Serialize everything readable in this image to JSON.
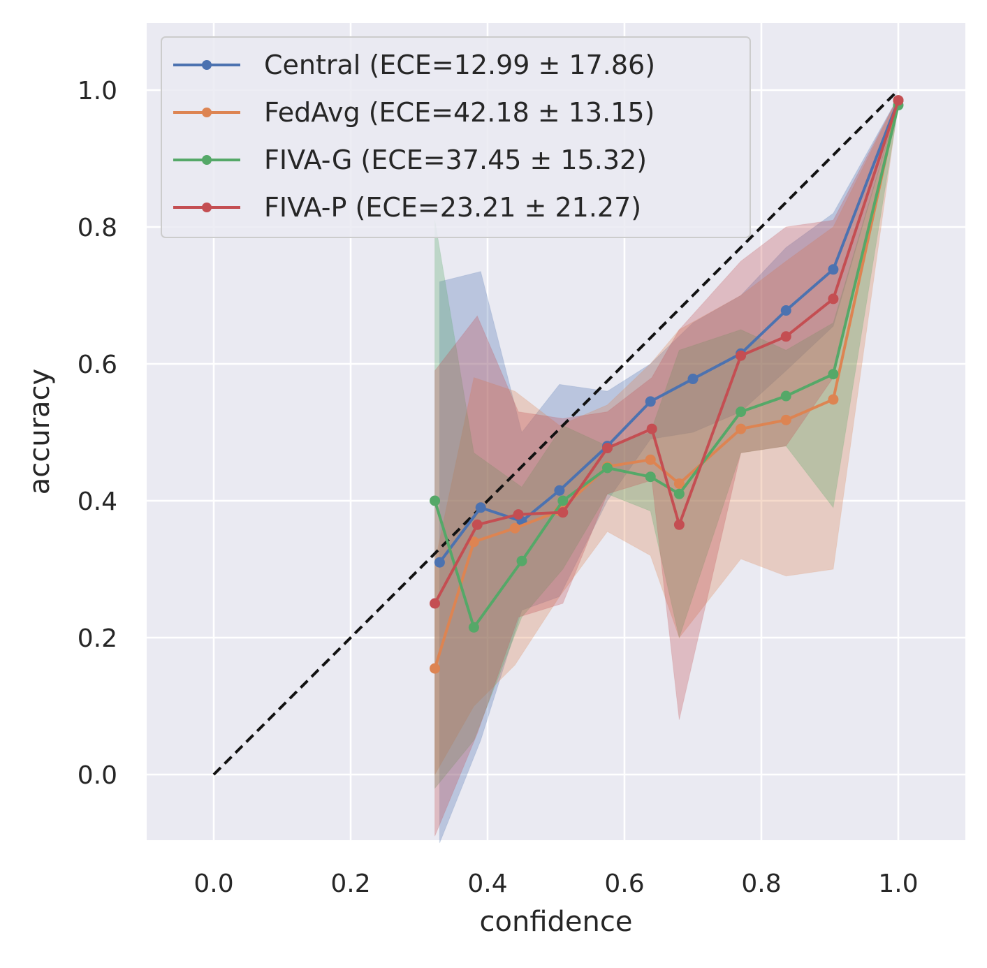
{
  "chart_data": {
    "type": "line",
    "title": "",
    "xlabel": "confidence",
    "ylabel": "accuracy",
    "xlim": [
      -0.1,
      1.1
    ],
    "ylim": [
      -0.1,
      1.1
    ],
    "xticks": [
      0.0,
      0.2,
      0.4,
      0.6,
      0.8,
      1.0
    ],
    "xtick_labels": [
      "0.0",
      "0.2",
      "0.4",
      "0.6",
      "0.8",
      "1.0"
    ],
    "yticks": [
      0.0,
      0.2,
      0.4,
      0.6,
      0.8,
      1.0
    ],
    "ytick_labels": [
      "0.0",
      "0.2",
      "0.4",
      "0.6",
      "0.8",
      "1.0"
    ],
    "grid": true,
    "legend_position": "top-left",
    "reference_line": {
      "style": "dashed",
      "color": "#111111",
      "x": [
        0.0,
        1.0
      ],
      "y": [
        0.0,
        1.0
      ]
    },
    "series": [
      {
        "name": "Central (ECE=12.99 ± 17.86)",
        "color": "#4c72b0",
        "x": [
          0.33,
          0.39,
          0.45,
          0.505,
          0.575,
          0.638,
          0.7,
          0.77,
          0.836,
          0.905,
          1.0
        ],
        "y": [
          0.31,
          0.39,
          0.37,
          0.415,
          0.48,
          0.545,
          0.578,
          0.615,
          0.678,
          0.738,
          0.985
        ],
        "upper": [
          0.72,
          0.735,
          0.5,
          0.57,
          0.56,
          0.6,
          0.66,
          0.7,
          0.77,
          0.82,
          0.99
        ],
        "lower": [
          -0.1,
          0.05,
          0.24,
          0.26,
          0.4,
          0.49,
          0.5,
          0.53,
          0.59,
          0.655,
          0.98
        ]
      },
      {
        "name": "FedAvg (ECE=42.18 ± 13.15)",
        "color": "#dd8452",
        "x": [
          0.323,
          0.38,
          0.44,
          0.505,
          0.575,
          0.638,
          0.68,
          0.77,
          0.836,
          0.905,
          1.0
        ],
        "y": [
          0.155,
          0.34,
          0.36,
          0.385,
          0.45,
          0.46,
          0.425,
          0.505,
          0.518,
          0.548,
          0.985
        ],
        "upper": [
          0.31,
          0.58,
          0.56,
          0.51,
          0.54,
          0.6,
          0.65,
          0.7,
          0.75,
          0.8,
          0.99
        ],
        "lower": [
          0.0,
          0.1,
          0.16,
          0.26,
          0.355,
          0.32,
          0.2,
          0.315,
          0.29,
          0.3,
          0.98
        ]
      },
      {
        "name": "FIVA-G (ECE=37.45 ± 15.32)",
        "color": "#55a868",
        "x": [
          0.323,
          0.38,
          0.45,
          0.51,
          0.575,
          0.638,
          0.68,
          0.77,
          0.836,
          0.905,
          1.0
        ],
        "y": [
          0.4,
          0.215,
          0.312,
          0.4,
          0.448,
          0.435,
          0.41,
          0.53,
          0.553,
          0.585,
          0.978
        ],
        "upper": [
          0.81,
          0.47,
          0.42,
          0.51,
          0.48,
          0.5,
          0.62,
          0.65,
          0.62,
          0.66,
          0.98
        ],
        "lower": [
          -0.02,
          0.05,
          0.23,
          0.3,
          0.41,
          0.385,
          0.2,
          0.47,
          0.48,
          0.39,
          0.975
        ]
      },
      {
        "name": "FIVA-P (ECE=23.21 ± 21.27)",
        "color": "#c44e52",
        "x": [
          0.323,
          0.385,
          0.445,
          0.51,
          0.575,
          0.64,
          0.68,
          0.77,
          0.836,
          0.905,
          1.0
        ],
        "y": [
          0.25,
          0.365,
          0.38,
          0.383,
          0.477,
          0.505,
          0.365,
          0.612,
          0.64,
          0.695,
          0.985
        ],
        "upper": [
          0.59,
          0.67,
          0.53,
          0.52,
          0.53,
          0.58,
          0.65,
          0.75,
          0.8,
          0.81,
          0.99
        ],
        "lower": [
          -0.09,
          0.06,
          0.23,
          0.25,
          0.41,
          0.43,
          0.08,
          0.47,
          0.48,
          0.58,
          0.98
        ]
      }
    ]
  }
}
